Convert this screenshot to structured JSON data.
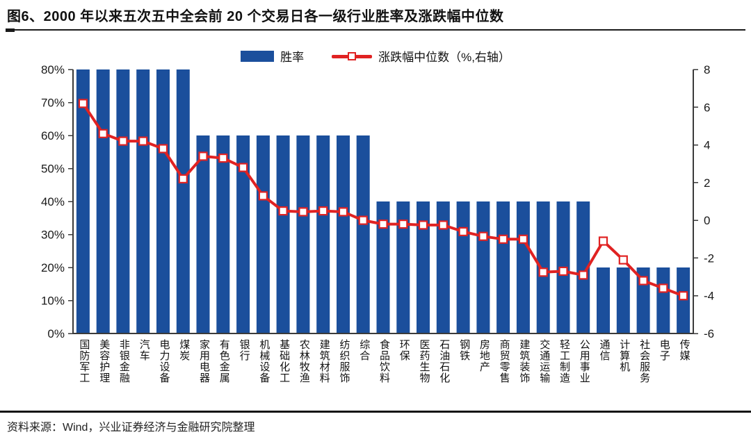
{
  "title": "图6、2000 年以来五次五中全会前 20 个交易日各一级行业胜率及涨跌幅中位数",
  "legend": {
    "bar_label": "胜率",
    "line_label": "涨跌幅中位数（%,右轴）"
  },
  "footer": {
    "source": "资料来源：Wind，兴业证券经济与金融研究院整理"
  },
  "colors": {
    "bar": "#1B4F9C",
    "line": "#E02222",
    "marker_fill": "#FFFFFF",
    "axis": "#3A3A3A",
    "text": "#1A1A1A"
  },
  "chart_data": {
    "type": "bar",
    "subtype": "bar-with-line-overlay",
    "title": "2000 年以来五次五中全会前 20 个交易日各一级行业胜率及涨跌幅中位数",
    "categories": [
      "国防军工",
      "美容护理",
      "非银金融",
      "汽车",
      "电力设备",
      "煤炭",
      "家用电器",
      "有色金属",
      "银行",
      "机械设备",
      "基础化工",
      "农林牧渔",
      "建筑材料",
      "纺织服饰",
      "综合",
      "食品饮料",
      "环保",
      "医药生物",
      "石油石化",
      "钢铁",
      "房地产",
      "商贸零售",
      "建筑装饰",
      "交通运输",
      "轻工制造",
      "公用事业",
      "通信",
      "计算机",
      "社会服务",
      "电子",
      "传媒"
    ],
    "series": [
      {
        "name": "胜率",
        "type": "bar",
        "axis": "left",
        "unit": "%",
        "values": [
          80,
          80,
          80,
          80,
          80,
          80,
          60,
          60,
          60,
          60,
          60,
          60,
          60,
          60,
          60,
          40,
          40,
          40,
          40,
          40,
          40,
          40,
          40,
          40,
          40,
          40,
          20,
          20,
          20,
          20,
          20
        ]
      },
      {
        "name": "涨跌幅中位数（%,右轴）",
        "type": "line",
        "axis": "right",
        "unit": "%",
        "values": [
          6.2,
          4.6,
          4.2,
          4.2,
          3.8,
          2.2,
          3.4,
          3.3,
          2.8,
          1.3,
          0.5,
          0.45,
          0.5,
          0.45,
          0.0,
          -0.2,
          -0.2,
          -0.25,
          -0.25,
          -0.6,
          -0.85,
          -1.0,
          -1.0,
          -2.75,
          -2.7,
          -2.9,
          -1.1,
          -2.1,
          -3.2,
          -3.6,
          -4.0
        ]
      }
    ],
    "left_axis": {
      "min": 0,
      "max": 80,
      "tick_step": 10,
      "tick_labels": [
        "0%",
        "10%",
        "20%",
        "30%",
        "40%",
        "50%",
        "60%",
        "70%",
        "80%"
      ]
    },
    "right_axis": {
      "min": -6,
      "max": 8,
      "tick_step": 2,
      "tick_labels": [
        "-6",
        "-4",
        "-2",
        "0",
        "2",
        "4",
        "6",
        "8"
      ]
    },
    "grid": false,
    "legend_position": "top-center"
  }
}
